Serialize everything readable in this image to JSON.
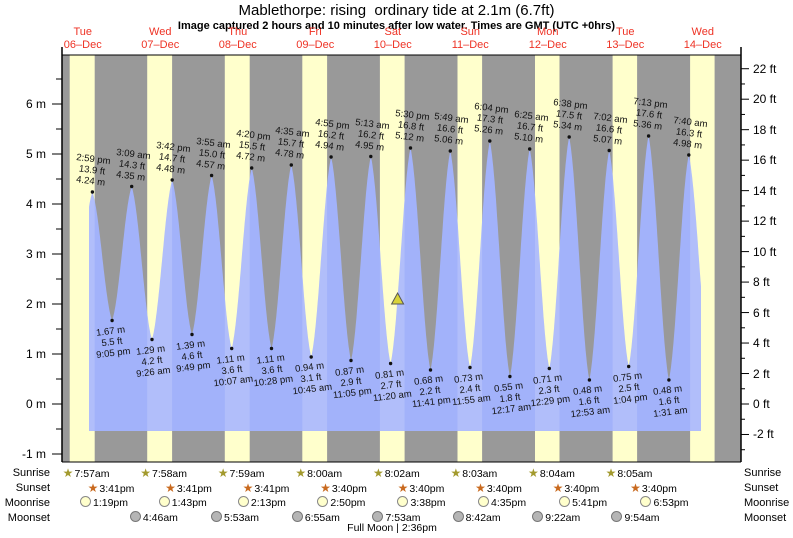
{
  "title": "Mablethorpe: rising  ordinary tide at 2.1m (6.7ft)",
  "subtitle": "Image captured 2 hours and 10 minutes after low water. Times are GMT (UTC +0hrs)",
  "colors": {
    "night_gray": "#999999",
    "daylight_band": "#ffffcc",
    "tide_fill": "#a2b2fa",
    "day_label": "#ee3224",
    "marker_fill": "#d8d33a",
    "sunrise_star": "#a39a2e",
    "sunset_star": "#c96a1f",
    "moonrise_fill": "#ffffcc",
    "moonset_fill": "#b5b5b5"
  },
  "chart_data": {
    "type": "area",
    "title": "Mablethorpe: rising  ordinary tide at 2.1m (6.7ft)",
    "ylabel_left_unit": "m",
    "ylabel_right_unit": "ft",
    "y_ticks_m": [
      6,
      5,
      4,
      3,
      2,
      1,
      0,
      -1
    ],
    "y_ticks_ft": [
      22,
      20,
      18,
      16,
      14,
      12,
      10,
      8,
      6,
      4,
      2,
      0,
      -2
    ],
    "days": [
      {
        "weekday": "Tue",
        "date": "06–Dec"
      },
      {
        "weekday": "Wed",
        "date": "07–Dec"
      },
      {
        "weekday": "Thu",
        "date": "08–Dec"
      },
      {
        "weekday": "Fri",
        "date": "09–Dec"
      },
      {
        "weekday": "Sat",
        "date": "10–Dec"
      },
      {
        "weekday": "Sun",
        "date": "11–Dec"
      },
      {
        "weekday": "Mon",
        "date": "12–Dec"
      },
      {
        "weekday": "Tue",
        "date": "13–Dec"
      },
      {
        "weekday": "Wed",
        "date": "14–Dec"
      }
    ],
    "tides": [
      {
        "type": "high",
        "time": "2:59 pm",
        "ft": 13.9,
        "m": 4.24,
        "t": 14.983
      },
      {
        "type": "low",
        "time": "9:05 pm",
        "ft": 5.5,
        "m": 1.67,
        "t": 21.083
      },
      {
        "type": "high",
        "time": "3:09 am",
        "ft": 14.3,
        "m": 4.35,
        "t": 27.15
      },
      {
        "type": "low",
        "time": "9:26 am",
        "ft": 4.2,
        "m": 1.29,
        "t": 33.433
      },
      {
        "type": "high",
        "time": "3:42 pm",
        "ft": 14.7,
        "m": 4.48,
        "t": 39.7
      },
      {
        "type": "low",
        "time": "9:49 pm",
        "ft": 4.6,
        "m": 1.39,
        "t": 45.817
      },
      {
        "type": "high",
        "time": "3:55 am",
        "ft": 15.0,
        "m": 4.57,
        "t": 51.917
      },
      {
        "type": "low",
        "time": "10:07 am",
        "ft": 3.6,
        "m": 1.11,
        "t": 58.117
      },
      {
        "type": "high",
        "time": "4:20 pm",
        "ft": 15.5,
        "m": 4.72,
        "t": 64.333
      },
      {
        "type": "low",
        "time": "10:28 pm",
        "ft": 3.6,
        "m": 1.11,
        "t": 70.467
      },
      {
        "type": "high",
        "time": "4:35 am",
        "ft": 15.7,
        "m": 4.78,
        "t": 76.583
      },
      {
        "type": "low",
        "time": "10:45 am",
        "ft": 3.1,
        "m": 0.94,
        "t": 82.75
      },
      {
        "type": "high",
        "time": "4:55 pm",
        "ft": 16.2,
        "m": 4.94,
        "t": 88.917
      },
      {
        "type": "low",
        "time": "11:05 pm",
        "ft": 2.9,
        "m": 0.87,
        "t": 95.083
      },
      {
        "type": "high",
        "time": "5:13 am",
        "ft": 16.2,
        "m": 4.95,
        "t": 101.217
      },
      {
        "type": "low",
        "time": "11:20 am",
        "ft": 2.7,
        "m": 0.81,
        "t": 107.333
      },
      {
        "type": "high",
        "time": "5:30 pm",
        "ft": 16.8,
        "m": 5.12,
        "t": 113.5
      },
      {
        "type": "low",
        "time": "11:41 pm",
        "ft": 2.2,
        "m": 0.68,
        "t": 119.683
      },
      {
        "type": "high",
        "time": "5:49 am",
        "ft": 16.6,
        "m": 5.06,
        "t": 125.817
      },
      {
        "type": "low",
        "time": "11:55 am",
        "ft": 2.4,
        "m": 0.73,
        "t": 131.917
      },
      {
        "type": "high",
        "time": "6:04 pm",
        "ft": 17.3,
        "m": 5.26,
        "t": 138.067
      },
      {
        "type": "low",
        "time": "12:17 am",
        "ft": 1.8,
        "m": 0.55,
        "t": 144.283
      },
      {
        "type": "high",
        "time": "6:25 am",
        "ft": 16.7,
        "m": 5.1,
        "t": 150.417
      },
      {
        "type": "low",
        "time": "12:29 pm",
        "ft": 2.3,
        "m": 0.71,
        "t": 156.483
      },
      {
        "type": "high",
        "time": "6:38 pm",
        "ft": 17.5,
        "m": 5.34,
        "t": 162.633
      },
      {
        "type": "low",
        "time": "12:53 am",
        "ft": 1.6,
        "m": 0.48,
        "t": 168.883
      },
      {
        "type": "high",
        "time": "7:02 am",
        "ft": 16.6,
        "m": 5.07,
        "t": 175.033
      },
      {
        "type": "low",
        "time": "1:04 pm",
        "ft": 2.5,
        "m": 0.75,
        "t": 181.067
      },
      {
        "type": "high",
        "time": "7:13 pm",
        "ft": 17.6,
        "m": 5.36,
        "t": 187.217
      },
      {
        "type": "low",
        "time": "1:31 am",
        "ft": 1.6,
        "m": 0.48,
        "t": 193.517
      },
      {
        "type": "high",
        "time": "7:40 am",
        "ft": 16.3,
        "m": 4.98,
        "t": 199.667
      }
    ],
    "now_marker": {
      "t": 109.5,
      "level_m": 2.1
    },
    "curve": {
      "start_t": 13.93,
      "end_t": 203.45,
      "base_m": -0.54,
      "virtual_prev_low": {
        "t": 8.77,
        "m": 1.5
      },
      "virtual_next_low": {
        "t": 206.0,
        "m": 0.8
      }
    }
  },
  "astro": {
    "row_labels": [
      "Sunrise",
      "Sunset",
      "Moonrise",
      "Moonset"
    ],
    "sunrise": [
      {
        "day": 0,
        "time": "7:57am",
        "h": 7.95
      },
      {
        "day": 1,
        "time": "7:58am",
        "h": 7.967
      },
      {
        "day": 2,
        "time": "7:59am",
        "h": 7.983
      },
      {
        "day": 3,
        "time": "8:00am",
        "h": 8.0
      },
      {
        "day": 4,
        "time": "8:02am",
        "h": 8.033
      },
      {
        "day": 5,
        "time": "8:03am",
        "h": 8.05
      },
      {
        "day": 6,
        "time": "8:04am",
        "h": 8.067
      },
      {
        "day": 7,
        "time": "8:05am",
        "h": 8.083
      }
    ],
    "sunset": [
      {
        "day": 0,
        "time": "3:41pm",
        "h": 15.683
      },
      {
        "day": 1,
        "time": "3:41pm",
        "h": 15.683
      },
      {
        "day": 2,
        "time": "3:41pm",
        "h": 15.683
      },
      {
        "day": 3,
        "time": "3:40pm",
        "h": 15.667
      },
      {
        "day": 4,
        "time": "3:40pm",
        "h": 15.667
      },
      {
        "day": 5,
        "time": "3:40pm",
        "h": 15.667
      },
      {
        "day": 6,
        "time": "3:40pm",
        "h": 15.667
      },
      {
        "day": 7,
        "time": "3:40pm",
        "h": 15.667
      }
    ],
    "moonrise": [
      {
        "day": 0,
        "time": "1:19pm",
        "h": 13.317
      },
      {
        "day": 1,
        "time": "1:43pm",
        "h": 13.717
      },
      {
        "day": 2,
        "time": "2:13pm",
        "h": 14.217
      },
      {
        "day": 3,
        "time": "2:50pm",
        "h": 14.833
      },
      {
        "day": 4,
        "time": "3:38pm",
        "h": 15.633
      },
      {
        "day": 5,
        "time": "4:35pm",
        "h": 16.583
      },
      {
        "day": 6,
        "time": "5:41pm",
        "h": 17.683
      },
      {
        "day": 7,
        "time": "6:53pm",
        "h": 18.883
      }
    ],
    "moonset": [
      {
        "day": 1,
        "time": "4:46am",
        "h": 4.767
      },
      {
        "day": 2,
        "time": "5:53am",
        "h": 5.883
      },
      {
        "day": 3,
        "time": "6:55am",
        "h": 6.917
      },
      {
        "day": 4,
        "time": "7:53am",
        "h": 7.883
      },
      {
        "day": 5,
        "time": "8:42am",
        "h": 8.7
      },
      {
        "day": 6,
        "time": "9:22am",
        "h": 9.367
      },
      {
        "day": 7,
        "time": "9:54am",
        "h": 9.9
      }
    ],
    "full_moon": "Full Moon | 2:36pm"
  }
}
